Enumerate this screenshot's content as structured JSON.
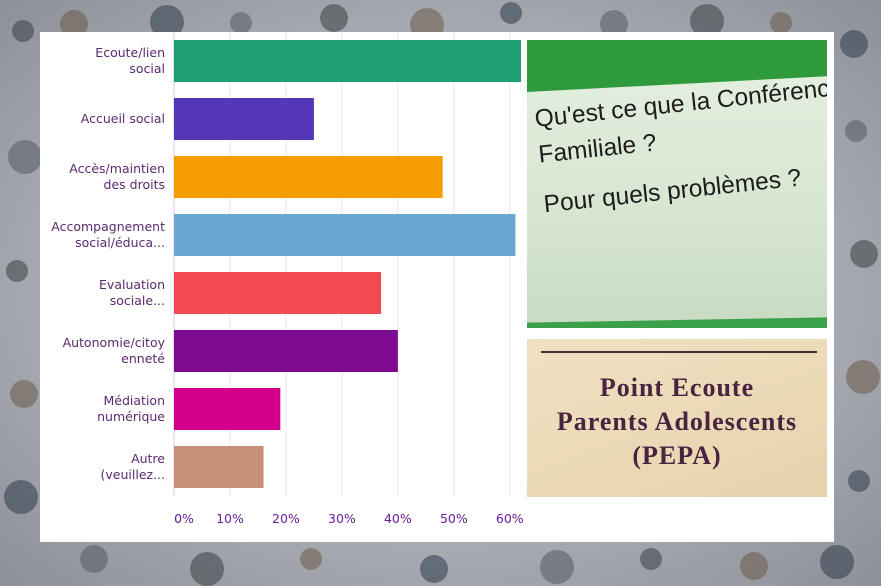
{
  "chart_data": {
    "type": "bar",
    "orientation": "horizontal",
    "categories": [
      [
        "Ecoute/lien",
        "social"
      ],
      [
        "Accueil social"
      ],
      [
        "Accès/maintien",
        "des droits"
      ],
      [
        "Accompagnement",
        "social/éduca..."
      ],
      [
        "Evaluation",
        "sociale..."
      ],
      [
        "Autonomie/citoy",
        "enneté"
      ],
      [
        "Médiation",
        "numérique"
      ],
      [
        "Autre",
        "(veuillez..."
      ]
    ],
    "values": [
      62,
      25,
      48,
      61,
      37,
      40,
      19,
      16
    ],
    "colors": [
      "#1e9e74",
      "#5436b8",
      "#f59d00",
      "#6aa8d2",
      "#f24a52",
      "#7d0a91",
      "#d4008c",
      "#c99079"
    ],
    "x_ticks": [
      "0%",
      "10%",
      "20%",
      "30%",
      "40%",
      "50%",
      "60%"
    ],
    "xlim": [
      0,
      62
    ],
    "grid": true
  },
  "photos": {
    "top": {
      "lines": [
        "Qu'est ce que la Conférence",
        "Familiale ?",
        "",
        "Pour quels problèmes ?"
      ]
    },
    "bottom": {
      "lines": [
        "Point Ecoute",
        "Parents Adolescents",
        "(PEPA)"
      ]
    }
  }
}
